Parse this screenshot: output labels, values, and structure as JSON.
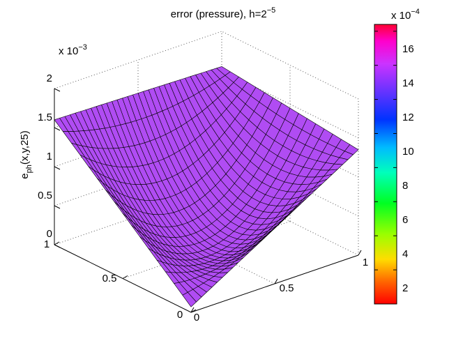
{
  "chart_data": {
    "type": "surface",
    "title_main": "error (pressure), h=2",
    "title_exp": "−5",
    "zlabel_main": "e",
    "zlabel_sub": "ph",
    "zlabel_rest": "(x,y,25)",
    "zscale_label": "x 10",
    "zscale_exp": "−3",
    "x_ticks": [
      "0",
      "0.5",
      "1"
    ],
    "y_ticks": [
      "0",
      "0.5",
      "1"
    ],
    "z_ticks": [
      "0",
      "0.5",
      "1",
      "1.5",
      "2"
    ],
    "zlim": [
      0,
      2
    ],
    "grid": true,
    "surface_color": "#b04cf3",
    "edge_color": "#000000",
    "colorbar": {
      "scale_label": "x 10",
      "scale_exp": "−4",
      "ticks": [
        "2",
        "4",
        "6",
        "8",
        "10",
        "12",
        "14",
        "16"
      ],
      "range": [
        0,
        16.4
      ],
      "colormap": "hsv"
    },
    "corner_values_e3": {
      "x0_y0": 0.07,
      "x1_y0": 1.35,
      "x0_y1": 1.6,
      "x1_y1": 1.55
    }
  }
}
